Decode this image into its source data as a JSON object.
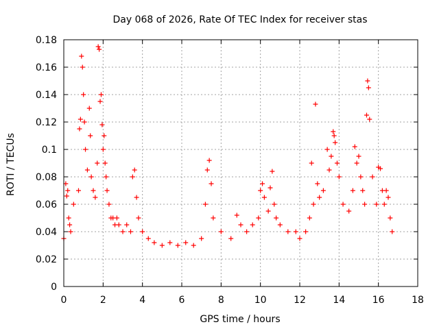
{
  "chart_data": {
    "type": "scatter",
    "title": "Day 068 of 2026, Rate Of TEC Index for receiver stas",
    "xlabel": "GPS time / hours",
    "ylabel": "ROTI / TECUs",
    "xlim": [
      0,
      18
    ],
    "ylim": [
      0,
      0.18
    ],
    "xticks": [
      "0",
      "2",
      "4",
      "6",
      "8",
      "10",
      "12",
      "14",
      "16",
      "18"
    ],
    "yticks": [
      "0",
      "0.02",
      "0.04",
      "0.06",
      "0.08",
      "0.1",
      "0.12",
      "0.14",
      "0.16",
      "0.18"
    ],
    "grid": true,
    "marker": "+",
    "series": [
      {
        "name": "ROTI",
        "color": "#ff0000",
        "x": [
          0.0,
          0.1,
          0.15,
          0.2,
          0.25,
          0.3,
          0.35,
          0.5,
          0.75,
          0.8,
          0.85,
          0.9,
          0.95,
          1.0,
          1.05,
          1.1,
          1.2,
          1.3,
          1.35,
          1.4,
          1.5,
          1.6,
          1.7,
          1.75,
          1.8,
          1.85,
          1.9,
          1.95,
          2.0,
          2.05,
          2.1,
          2.15,
          2.2,
          2.3,
          2.4,
          2.5,
          2.6,
          2.7,
          2.8,
          3.0,
          3.2,
          3.4,
          3.5,
          3.6,
          3.7,
          3.8,
          4.0,
          4.3,
          4.6,
          5.0,
          5.4,
          5.8,
          6.2,
          6.6,
          7.0,
          7.2,
          7.3,
          7.4,
          7.5,
          7.6,
          8.0,
          8.5,
          8.8,
          9.0,
          9.3,
          9.6,
          9.9,
          10.0,
          10.1,
          10.2,
          10.4,
          10.5,
          10.6,
          10.7,
          10.8,
          11.0,
          11.4,
          11.8,
          12.0,
          12.3,
          12.5,
          12.6,
          12.7,
          12.8,
          12.9,
          13.0,
          13.2,
          13.4,
          13.5,
          13.6,
          13.7,
          13.75,
          13.8,
          13.9,
          14.0,
          14.2,
          14.5,
          14.7,
          14.8,
          14.9,
          15.0,
          15.1,
          15.2,
          15.3,
          15.4,
          15.45,
          15.5,
          15.55,
          15.7,
          15.9,
          16.0,
          16.1,
          16.2,
          16.3,
          16.4,
          16.5,
          16.6,
          16.7
        ],
        "y": [
          0.035,
          0.075,
          0.066,
          0.07,
          0.05,
          0.045,
          0.04,
          0.06,
          0.07,
          0.115,
          0.122,
          0.168,
          0.16,
          0.14,
          0.12,
          0.1,
          0.085,
          0.13,
          0.11,
          0.08,
          0.07,
          0.065,
          0.09,
          0.175,
          0.173,
          0.135,
          0.14,
          0.118,
          0.1,
          0.11,
          0.09,
          0.08,
          0.07,
          0.06,
          0.05,
          0.05,
          0.045,
          0.05,
          0.045,
          0.04,
          0.045,
          0.04,
          0.08,
          0.085,
          0.065,
          0.05,
          0.04,
          0.035,
          0.032,
          0.03,
          0.032,
          0.03,
          0.032,
          0.03,
          0.035,
          0.06,
          0.085,
          0.092,
          0.075,
          0.05,
          0.04,
          0.035,
          0.052,
          0.045,
          0.04,
          0.045,
          0.05,
          0.07,
          0.075,
          0.065,
          0.055,
          0.072,
          0.084,
          0.06,
          0.05,
          0.045,
          0.04,
          0.04,
          0.035,
          0.04,
          0.05,
          0.09,
          0.06,
          0.133,
          0.075,
          0.065,
          0.07,
          0.1,
          0.085,
          0.095,
          0.113,
          0.11,
          0.105,
          0.09,
          0.08,
          0.06,
          0.055,
          0.07,
          0.102,
          0.09,
          0.095,
          0.08,
          0.07,
          0.06,
          0.125,
          0.15,
          0.145,
          0.122,
          0.08,
          0.06,
          0.087,
          0.086,
          0.07,
          0.06,
          0.07,
          0.065,
          0.05,
          0.04
        ]
      }
    ]
  }
}
